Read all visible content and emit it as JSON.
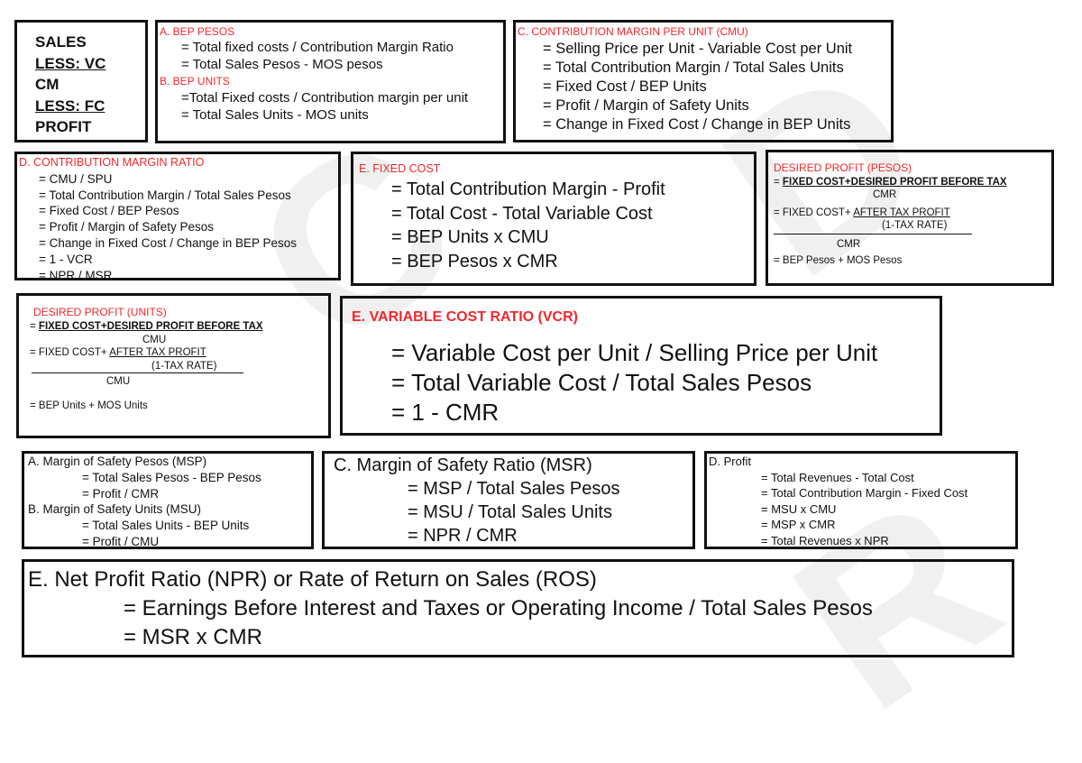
{
  "summary": {
    "lines": [
      "SALES",
      "LESS: VC",
      "CM",
      "LESS: FC",
      "PROFIT"
    ]
  },
  "bep": {
    "pesos_title": "A. BEP PESOS",
    "pesos_lines": [
      "= Total fixed costs / Contribution Margin Ratio",
      "= Total Sales Pesos - MOS pesos"
    ],
    "units_title": "B. BEP UNITS",
    "units_lines": [
      "=Total Fixed costs / Contribution margin per unit",
      "= Total Sales Units - MOS units"
    ]
  },
  "cmu": {
    "title": "C. CONTRIBUTION MARGIN PER UNIT (CMU)",
    "lines": [
      "= Selling Price per Unit - Variable Cost per Unit",
      "= Total Contribution Margin / Total Sales Units",
      "= Fixed Cost / BEP Units",
      "= Profit / Margin of Safety Units",
      "= Change in Fixed Cost / Change in BEP Units"
    ]
  },
  "cmr": {
    "title": "D. CONTRIBUTION MARGIN RATIO",
    "lines": [
      "= CMU / SPU",
      "= Total Contribution Margin / Total Sales Pesos",
      "= Fixed Cost / BEP Pesos",
      "= Profit / Margin of Safety Pesos",
      "= Change in Fixed Cost / Change in BEP Pesos",
      "= 1 - VCR",
      "= NPR / MSR"
    ]
  },
  "fixed_cost": {
    "title": "E. FIXED COST",
    "lines": [
      "= Total Contribution Margin - Profit",
      "= Total Cost - Total Variable Cost",
      "= BEP Units x CMU",
      "= BEP Pesos x CMR"
    ]
  },
  "dp_pesos": {
    "title": "DESIRED PROFIT (PESOS)",
    "eq": "=",
    "num1": "FIXED COST+DESIRED PROFIT BEFORE TAX",
    "den1": "CMR",
    "prefix2": "= FIXED COST+",
    "num2": "AFTER TAX PROFIT",
    "sub2": "(1-TAX RATE)",
    "den2": "CMR",
    "line3": "= BEP Pesos + MOS Pesos"
  },
  "dp_units": {
    "title": "DESIRED PROFIT (UNITS)",
    "eq": "=",
    "num1": "FIXED COST+DESIRED PROFIT BEFORE TAX",
    "den1": "CMU",
    "prefix2": "= FIXED COST+",
    "num2": "AFTER TAX PROFIT",
    "sub2": "(1-TAX RATE)",
    "den2": "CMU",
    "line3": "= BEP Units + MOS Units"
  },
  "vcr": {
    "title": "E. VARIABLE COST RATIO (VCR)",
    "lines": [
      "= Variable Cost per Unit / Selling Price per Unit",
      "= Total Variable Cost / Total Sales Pesos",
      "= 1 - CMR"
    ]
  },
  "mos": {
    "msp_title": "A. Margin of Safety Pesos (MSP)",
    "msp_lines": [
      "= Total Sales Pesos - BEP Pesos",
      "= Profit / CMR"
    ],
    "msu_title": "B. Margin of Safety Units (MSU)",
    "msu_lines": [
      "= Total Sales Units - BEP Units",
      "= Profit / CMU"
    ]
  },
  "msr": {
    "title": "C. Margin of Safety Ratio (MSR)",
    "lines": [
      "= MSP / Total Sales Pesos",
      "= MSU / Total Sales Units",
      "= NPR / CMR"
    ]
  },
  "profit": {
    "title": "D. Profit",
    "lines": [
      "= Total Revenues - Total Cost",
      "= Total Contribution Margin - Fixed Cost",
      "= MSU x CMU",
      "= MSP x CMR",
      "= Total Revenues x NPR"
    ]
  },
  "npr": {
    "title": "E. Net Profit Ratio (NPR) or Rate of Return on Sales (ROS)",
    "lines": [
      "= Earnings Before Interest and Taxes or Operating Income / Total Sales Pesos",
      "= MSR x CMR"
    ]
  },
  "colors": {
    "heading": "#f0282d",
    "border": "#111111"
  }
}
